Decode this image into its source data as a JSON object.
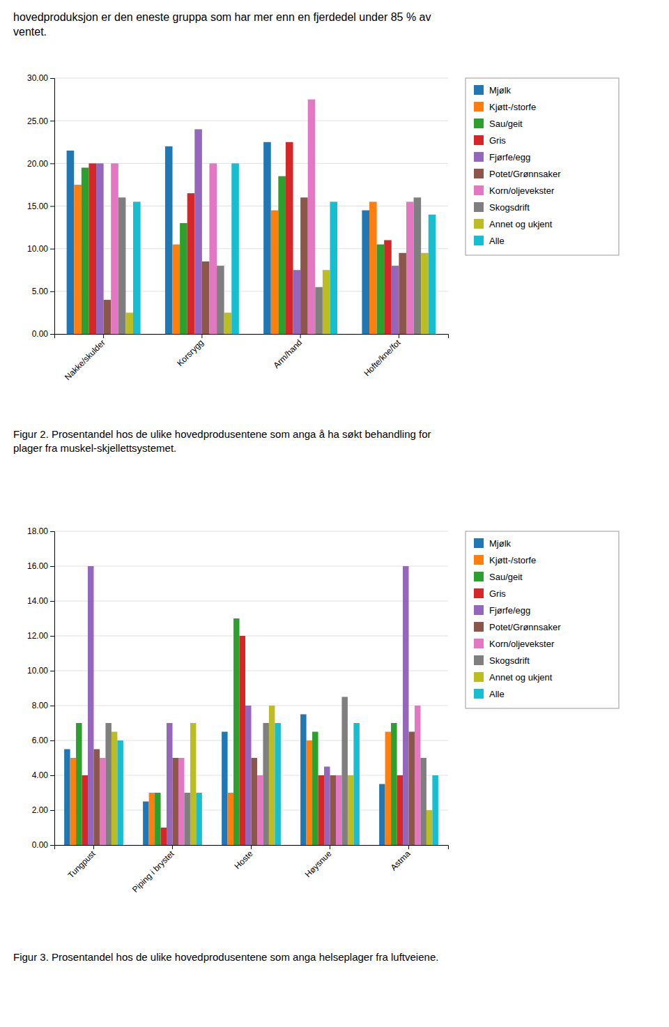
{
  "chart_data": [
    {
      "type": "bar",
      "title": "Figur 2. Prosentandel hos de ulike hovedprodusentene som anga å ha søkt behandling for\nplager fra muskel-skjellettsystemet.",
      "annotations": [
        "hovedproduksjon er den eneste gruppa som har mer enn en fjerdedel under 85 % av\nventet."
      ],
      "categories": [
        "Nakke/skulder",
        "Korsrygg",
        "Arm/hand",
        "Hofte/kne/fot"
      ],
      "series": [
        {
          "name": "Mjølk",
          "values": [
            21.5,
            22.0,
            22.5,
            14.5
          ]
        },
        {
          "name": "Kjøtt-/storfe",
          "values": [
            17.5,
            10.5,
            14.5,
            15.5
          ]
        },
        {
          "name": "Sau/geit",
          "values": [
            19.5,
            13.0,
            18.5,
            10.5
          ]
        },
        {
          "name": "Gris",
          "values": [
            20.0,
            16.5,
            22.5,
            11.0
          ]
        },
        {
          "name": "Fjørfe/egg",
          "values": [
            20.0,
            24.0,
            7.5,
            8.0
          ]
        },
        {
          "name": "Potet/Grønnsaker",
          "values": [
            4.0,
            8.5,
            16.0,
            9.5
          ]
        },
        {
          "name": "Korn/oljevekster",
          "values": [
            20.0,
            20.0,
            27.5,
            15.5
          ]
        },
        {
          "name": "Skogsdrift",
          "values": [
            16.0,
            8.0,
            5.5,
            16.0
          ]
        },
        {
          "name": "Annet og ukjent",
          "values": [
            2.5,
            2.5,
            7.5,
            9.5
          ]
        },
        {
          "name": "Alle",
          "values": [
            15.5,
            20.0,
            15.5,
            14.0
          ]
        }
      ],
      "ylim": [
        0,
        30
      ],
      "yticks": [
        {
          "value": 0,
          "label": "0.00"
        },
        {
          "value": 5,
          "label": "5.00"
        },
        {
          "value": 10,
          "label": "10.00"
        },
        {
          "value": 15,
          "label": "15.00"
        },
        {
          "value": 20,
          "label": "20.00"
        },
        {
          "value": 25,
          "label": "25.00"
        },
        {
          "value": 30,
          "label": "30.00"
        }
      ],
      "grid": true,
      "legend": "right"
    },
    {
      "type": "bar",
      "title": "Figur 3. Prosentandel hos de ulike hovedprodusentene som anga helseplager fra luftveiene.",
      "categories": [
        "Tungpust",
        "Piping i brystet",
        "Hoste",
        "Høysnue",
        "Astma"
      ],
      "series": [
        {
          "name": "Mjølk",
          "values": [
            5.5,
            2.5,
            6.5,
            7.5,
            3.5
          ]
        },
        {
          "name": "Kjøtt-/storfe",
          "values": [
            5.0,
            3.0,
            3.0,
            6.0,
            6.5
          ]
        },
        {
          "name": "Sau/geit",
          "values": [
            7.0,
            3.0,
            13.0,
            6.5,
            7.0
          ]
        },
        {
          "name": "Gris",
          "values": [
            4.0,
            1.0,
            12.0,
            4.0,
            4.0
          ]
        },
        {
          "name": "Fjørfe/egg",
          "values": [
            16.0,
            7.0,
            8.0,
            4.5,
            16.0
          ]
        },
        {
          "name": "Potet/Grønnsaker",
          "values": [
            5.5,
            5.0,
            5.0,
            4.0,
            6.5
          ]
        },
        {
          "name": "Korn/oljevekster",
          "values": [
            5.0,
            5.0,
            4.0,
            4.0,
            8.0
          ]
        },
        {
          "name": "Skogsdrift",
          "values": [
            7.0,
            3.0,
            7.0,
            8.5,
            5.0
          ]
        },
        {
          "name": "Annet og ukjent",
          "values": [
            6.5,
            7.0,
            8.0,
            4.0,
            2.0
          ]
        },
        {
          "name": "Alle",
          "values": [
            6.0,
            3.0,
            7.0,
            7.0,
            4.0
          ]
        }
      ],
      "ylim": [
        0,
        18
      ],
      "yticks": [
        {
          "value": 0,
          "label": "0.00"
        },
        {
          "value": 2,
          "label": "2.00"
        },
        {
          "value": 4,
          "label": "4.00"
        },
        {
          "value": 6,
          "label": "6.00"
        },
        {
          "value": 8,
          "label": "8.00"
        },
        {
          "value": 10,
          "label": "10.00"
        },
        {
          "value": 12,
          "label": "12.00"
        },
        {
          "value": 14,
          "label": "14.00"
        },
        {
          "value": 16,
          "label": "16.00"
        },
        {
          "value": 18,
          "label": "18.00"
        }
      ],
      "grid": true,
      "legend": "right"
    }
  ]
}
